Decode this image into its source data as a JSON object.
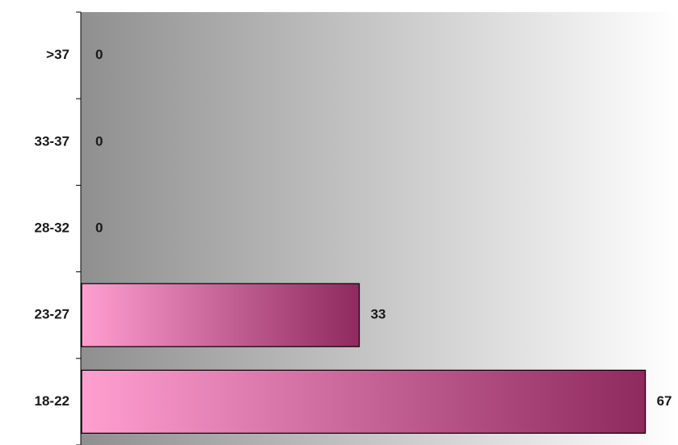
{
  "chart_data": {
    "type": "bar",
    "orientation": "horizontal",
    "categories": [
      ">37",
      "33-37",
      "28-32",
      "23-27",
      "18-22"
    ],
    "values": [
      0,
      0,
      0,
      33,
      67
    ],
    "data_labels": [
      "0",
      "0",
      "0",
      "33",
      "67"
    ],
    "xlim": [
      0,
      68
    ],
    "title": "",
    "xlabel": "",
    "ylabel": "",
    "grid": false,
    "legend": "none",
    "colors": {
      "plot_bg_dark": "#8f8f8f",
      "plot_bg_light": "#ffffff",
      "bar_light": "#ff9fd0",
      "bar_dark": "#8e2a5e",
      "bar_border": "#000000",
      "axis": "#000000"
    }
  }
}
